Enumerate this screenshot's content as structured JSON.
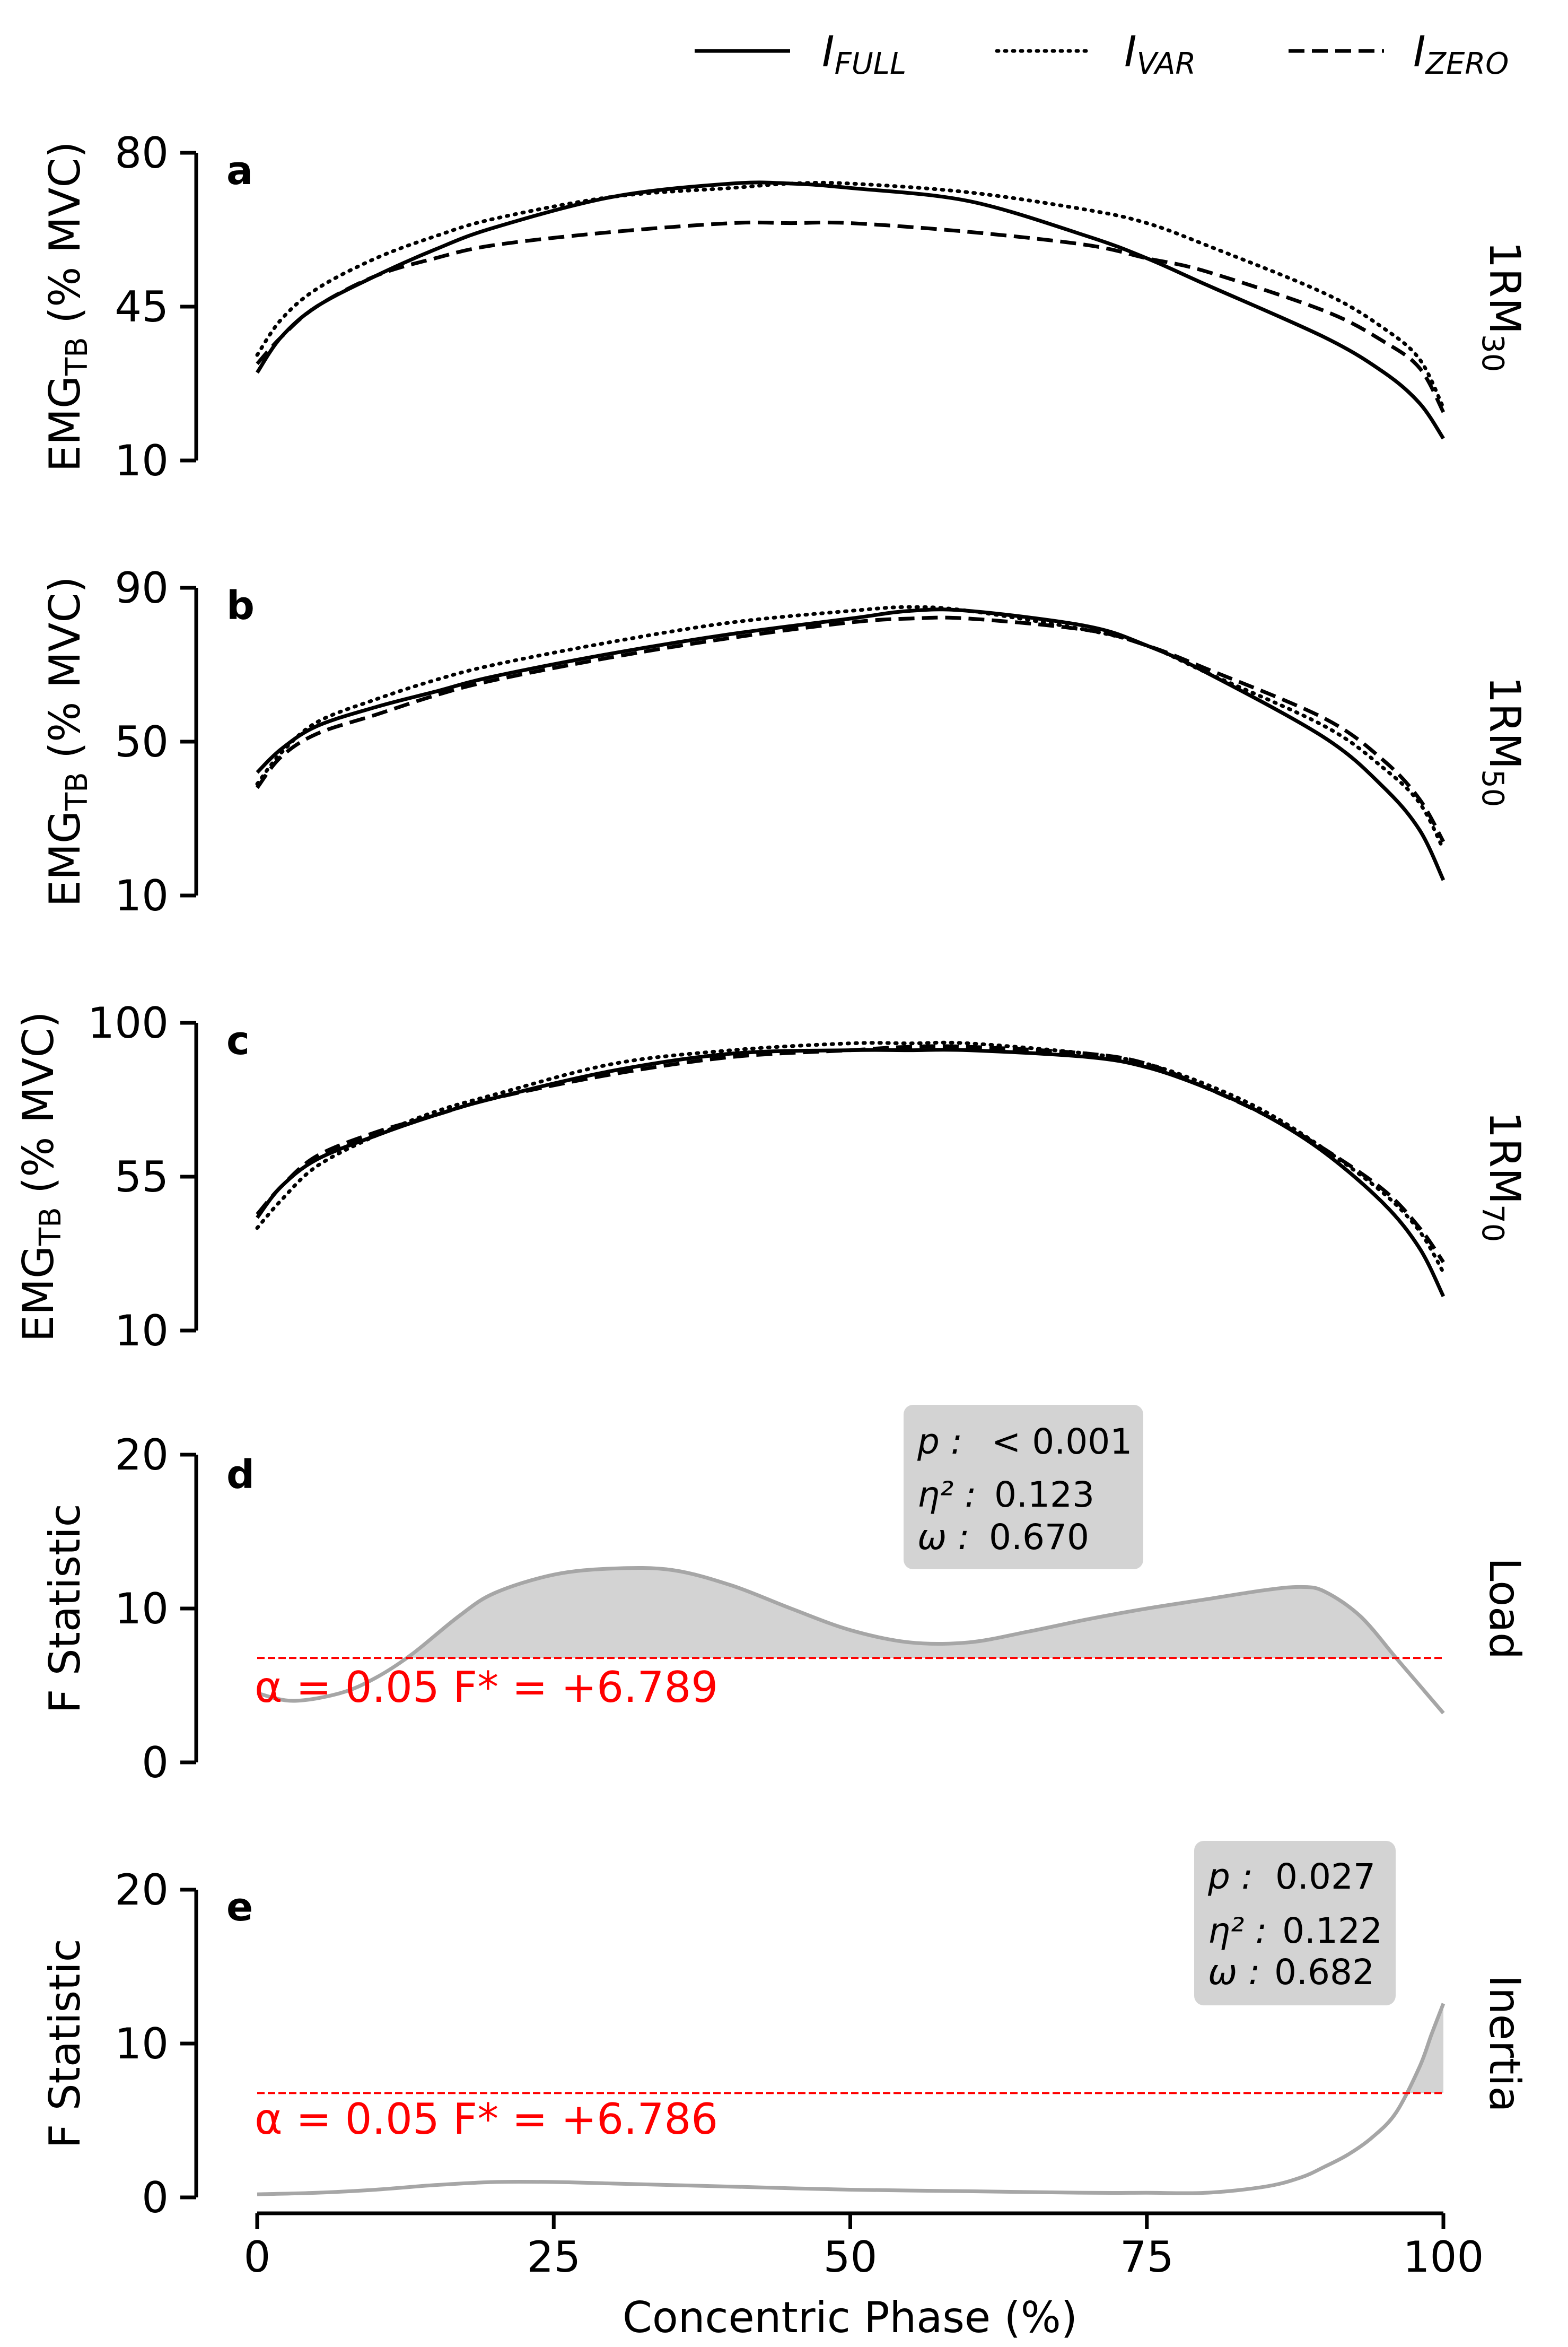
{
  "legend": [
    {
      "name": "I",
      "sub": "FULL",
      "style": "solid"
    },
    {
      "name": "I",
      "sub": "VAR",
      "style": "dotted"
    },
    {
      "name": "I",
      "sub": "ZERO",
      "style": "dashed"
    }
  ],
  "x_axis": {
    "label": "Concentric Phase (%)",
    "ticks": [
      "0",
      "25",
      "50",
      "75",
      "100"
    ],
    "tick_values": [
      0,
      25,
      50,
      75,
      100
    ],
    "range": [
      0,
      100
    ]
  },
  "panels": [
    {
      "letter": "a",
      "ylabel_main": "EMG",
      "ylabel_sub": "TB",
      "ylabel_tail": " (% MVC)",
      "row_label_main": "1RM",
      "row_label_sub": "30",
      "yticks": [
        "10",
        "45",
        "80"
      ]
    },
    {
      "letter": "b",
      "ylabel_main": "EMG",
      "ylabel_sub": "TB",
      "ylabel_tail": " (% MVC)",
      "row_label_main": "1RM",
      "row_label_sub": "50",
      "yticks": [
        "10",
        "50",
        "90"
      ]
    },
    {
      "letter": "c",
      "ylabel_main": "EMG",
      "ylabel_sub": "TB",
      "ylabel_tail": " (% MVC)",
      "row_label_main": "1RM",
      "row_label_sub": "70",
      "yticks": [
        "10",
        "55",
        "100"
      ]
    },
    {
      "letter": "d",
      "ylabel": "F Statistic",
      "row_label": "Load",
      "yticks": [
        "0",
        "10",
        "20"
      ],
      "crit_text": "α = 0.05    F* = +6.789",
      "stats": {
        "p_label": "p :",
        "p_value": "< 0.001",
        "eta_label": "η² :",
        "eta_value": "0.123",
        "omega_label": "ω :",
        "omega_value": "0.670"
      }
    },
    {
      "letter": "e",
      "ylabel": "F Statistic",
      "row_label": "Inertia",
      "yticks": [
        "0",
        "10",
        "20"
      ],
      "crit_text": "α = 0.05    F* = +6.786",
      "stats": {
        "p_label": "p :",
        "p_value": "0.027",
        "eta_label": "η² :",
        "eta_value": "0.122",
        "omega_label": "ω :",
        "omega_value": "0.682"
      }
    }
  ],
  "chart_data": [
    {
      "type": "line",
      "panel": "a",
      "xlabel": "Concentric Phase (%)",
      "ylabel": "EMG_TB (% MVC)",
      "ylim": [
        10,
        80
      ],
      "xlim": [
        0,
        100
      ],
      "x": [
        0,
        2,
        5,
        10,
        15,
        20,
        30,
        40,
        45,
        50,
        60,
        70,
        75,
        80,
        90,
        95,
        98,
        100
      ],
      "series": [
        {
          "name": "I_FULL",
          "values": [
            30,
            38,
            45,
            52,
            58,
            63,
            70,
            73,
            73,
            72,
            69,
            61,
            56,
            50,
            38,
            30,
            23,
            15
          ]
        },
        {
          "name": "I_VAR",
          "values": [
            34,
            42,
            49,
            56,
            61,
            65,
            70,
            72,
            73,
            73,
            71,
            67,
            64,
            59,
            48,
            40,
            33,
            22
          ]
        },
        {
          "name": "I_ZERO",
          "values": [
            32,
            38,
            45,
            52,
            56,
            59,
            62,
            64,
            64,
            64,
            62,
            59,
            56,
            53,
            44,
            37,
            31,
            21
          ]
        }
      ]
    },
    {
      "type": "line",
      "panel": "b",
      "xlabel": "Concentric Phase (%)",
      "ylabel": "EMG_TB (% MVC)",
      "ylim": [
        10,
        90
      ],
      "xlim": [
        0,
        100
      ],
      "x": [
        0,
        2,
        5,
        10,
        15,
        20,
        30,
        40,
        50,
        55,
        60,
        70,
        75,
        80,
        90,
        95,
        98,
        100
      ],
      "series": [
        {
          "name": "I_FULL",
          "values": [
            42,
            48,
            54,
            59,
            63,
            67,
            73,
            78,
            82,
            84,
            84,
            80,
            75,
            68,
            51,
            38,
            27,
            14
          ]
        },
        {
          "name": "I_VAR",
          "values": [
            39,
            47,
            55,
            61,
            66,
            70,
            76,
            81,
            84,
            85,
            84,
            79,
            75,
            68,
            54,
            43,
            34,
            22
          ]
        },
        {
          "name": "I_ZERO",
          "values": [
            38,
            46,
            52,
            57,
            62,
            66,
            72,
            77,
            81,
            82,
            82,
            79,
            75,
            69,
            56,
            45,
            35,
            24
          ]
        }
      ]
    },
    {
      "type": "line",
      "panel": "c",
      "xlabel": "Concentric Phase (%)",
      "ylabel": "EMG_TB (% MVC)",
      "ylim": [
        10,
        100
      ],
      "xlim": [
        0,
        100
      ],
      "x": [
        0,
        2,
        5,
        10,
        15,
        20,
        30,
        40,
        50,
        55,
        60,
        70,
        75,
        80,
        85,
        90,
        95,
        98,
        100
      ],
      "series": [
        {
          "name": "I_FULL",
          "values": [
            43,
            52,
            60,
            67,
            73,
            78,
            86,
            91,
            92,
            92,
            92,
            90,
            87,
            81,
            73,
            62,
            47,
            34,
            20
          ]
        },
        {
          "name": "I_VAR",
          "values": [
            40,
            48,
            58,
            67,
            74,
            79,
            88,
            92,
            94,
            94,
            94,
            91,
            88,
            82,
            74,
            63,
            50,
            39,
            27
          ]
        },
        {
          "name": "I_ZERO",
          "values": [
            44,
            52,
            61,
            68,
            73,
            78,
            85,
            90,
            92,
            93,
            93,
            91,
            88,
            81,
            73,
            63,
            51,
            40,
            30
          ]
        }
      ]
    },
    {
      "type": "area",
      "panel": "d",
      "xlabel": "Concentric Phase (%)",
      "ylabel": "F Statistic",
      "ylim": [
        0,
        20
      ],
      "xlim": [
        0,
        100
      ],
      "threshold": 6.789,
      "x": [
        0,
        3,
        7,
        10,
        13,
        17,
        20,
        25,
        30,
        35,
        40,
        45,
        50,
        55,
        60,
        65,
        70,
        75,
        80,
        85,
        88,
        90,
        93,
        96,
        98,
        100
      ],
      "series": [
        {
          "name": "F statistic (Load)",
          "values": [
            4.5,
            4.0,
            4.5,
            5.5,
            7.0,
            9.5,
            11.0,
            12.2,
            12.6,
            12.5,
            11.5,
            10.0,
            8.6,
            7.8,
            7.8,
            8.5,
            9.3,
            10.0,
            10.6,
            11.2,
            11.4,
            11.1,
            9.5,
            6.8,
            5.0,
            3.2
          ]
        }
      ]
    },
    {
      "type": "area",
      "panel": "e",
      "xlabel": "Concentric Phase (%)",
      "ylabel": "F Statistic",
      "ylim": [
        0,
        20
      ],
      "xlim": [
        0,
        100
      ],
      "threshold": 6.786,
      "x": [
        0,
        5,
        10,
        15,
        20,
        25,
        30,
        40,
        50,
        60,
        70,
        75,
        80,
        85,
        88,
        90,
        92,
        94,
        96,
        98,
        99,
        100
      ],
      "series": [
        {
          "name": "F statistic (Inertia)",
          "values": [
            0.2,
            0.3,
            0.5,
            0.8,
            1.0,
            1.0,
            0.9,
            0.7,
            0.5,
            0.4,
            0.3,
            0.3,
            0.3,
            0.7,
            1.3,
            2.0,
            2.8,
            3.9,
            5.5,
            8.5,
            10.6,
            12.6
          ]
        }
      ]
    }
  ]
}
